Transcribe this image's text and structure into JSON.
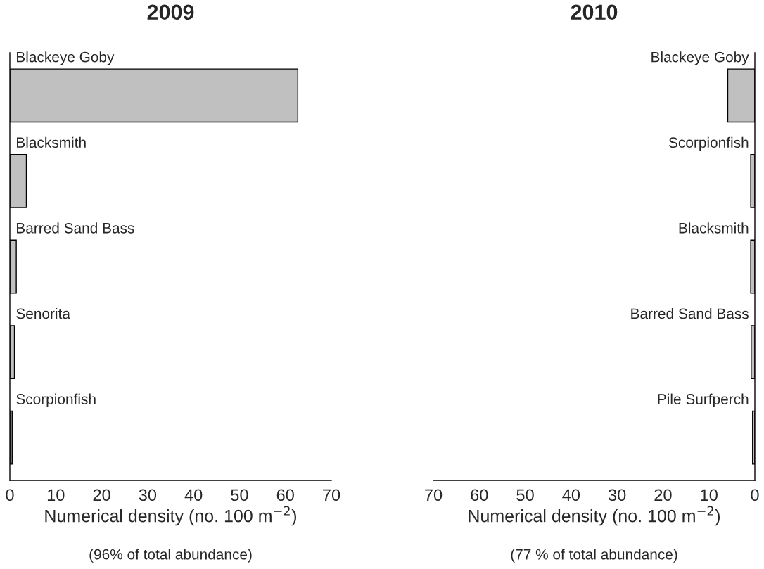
{
  "chart_data": [
    {
      "type": "bar",
      "orientation": "horizontal",
      "title": "2009",
      "xlabel": "Numerical density (no. 100 m$^{−2}$)",
      "annotations": [
        "(96% of total abundance)"
      ],
      "categories": [
        "Blackeye Goby",
        "Blacksmith",
        "Barred Sand Bass",
        "Senorita",
        "Scorpionfish"
      ],
      "values": [
        62.7,
        3.6,
        1.4,
        1.0,
        0.5
      ],
      "color": "#c0c0c0",
      "xlim": [
        0,
        70
      ],
      "xticks": [
        0,
        10,
        20,
        30,
        40,
        50,
        60,
        70
      ],
      "tick_labels": "x",
      "grid": false,
      "legend": false
    },
    {
      "type": "bar",
      "orientation": "horizontal",
      "title": "2010",
      "xlabel": "Numerical density (no. 100 m$^{−2}$)",
      "annotations": [
        "(77 % of total abundance)"
      ],
      "categories": [
        "Blackeye Goby",
        "Scorpionfish",
        "Blacksmith",
        "Barred Sand Bass",
        "Pile Surfperch"
      ],
      "values": [
        5.9,
        0.9,
        0.9,
        0.8,
        0.5
      ],
      "color": "#c0c0c0",
      "xlim": [
        70,
        0
      ],
      "xticks": [
        70,
        60,
        50,
        40,
        30,
        20,
        10,
        0
      ],
      "tick_labels": "x",
      "grid": false,
      "legend": false
    }
  ]
}
